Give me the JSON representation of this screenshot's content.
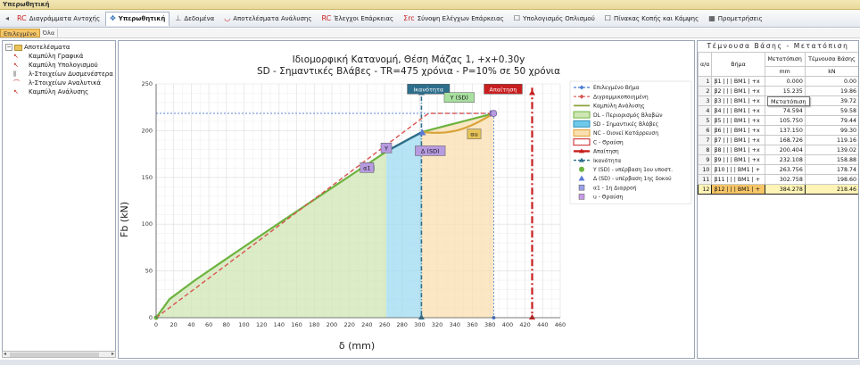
{
  "window_title": "Υπερωθητική",
  "ribbon": {
    "tabs": [
      {
        "label": "Διαγράμματα Αντοχής",
        "icon": "rc-icon",
        "glyph": "RC",
        "color": "#c81e1e"
      },
      {
        "label": "Υπερωθητική",
        "icon": "pushover-icon",
        "glyph": "✥",
        "color": "#2b6cb0",
        "active": true
      },
      {
        "label": "Δεδομένα",
        "icon": "data-icon",
        "glyph": "⊥",
        "color": "#555"
      },
      {
        "label": "Αποτελέσματα Ανάλυσης",
        "icon": "curve-icon",
        "glyph": "◡",
        "color": "#c81e1e"
      },
      {
        "label": "Έλεγχοι Επάρκειας",
        "icon": "rc-check-icon",
        "glyph": "RC",
        "color": "#c81e1e"
      },
      {
        "label": "Σύνοψη Ελέγχων Επάρκειας",
        "icon": "summary-icon",
        "glyph": "Σrc",
        "color": "#c81e1e"
      },
      {
        "label": "Υπολογισμός Οπλισμού",
        "icon": "checkbox-icon",
        "glyph": "☐",
        "color": "#333"
      },
      {
        "label": "Πίνακας Κοπής και Κάμψης",
        "icon": "checkbox-icon",
        "glyph": "☐",
        "color": "#333"
      },
      {
        "label": "Προμετρήσεις",
        "icon": "table-icon",
        "glyph": "▦",
        "color": "#333"
      }
    ]
  },
  "subtabs": [
    "Επιλεγμένο",
    "Όλα"
  ],
  "tree": {
    "root": "Αποτελέσματα",
    "items": [
      {
        "label": "Καμπύλη Γραφικά",
        "glyph": "↖",
        "color": "#c81e1e"
      },
      {
        "label": "Καμπύλη Υπολογισμού",
        "glyph": "↖",
        "color": "#c81e1e"
      },
      {
        "label": "λ-Στοιχείων Δυσμενέστερα",
        "glyph": "⫼",
        "color": "#555"
      },
      {
        "label": "λ-Στοιχείων Αναλυτικά",
        "glyph": "⌒",
        "color": "#c81e1e"
      },
      {
        "label": "Καμπύλη Ανάλυσης",
        "glyph": "↖",
        "color": "#c81e1e"
      }
    ]
  },
  "colors": {
    "accent": "#f6c566",
    "zone_dl": "#cfe6b4",
    "zone_sd": "#9edbf1",
    "zone_nc": "#f9dfb0",
    "capacity": "#2d6e8c",
    "demand": "#c81e1e",
    "analysis_curve": "#6db33f",
    "bilinear": "#d9534f"
  },
  "chart_data": {
    "type": "line",
    "title": "Ιδιομορφική Κατανομή, Θέση Μάζας 1, +x+0.30y",
    "subtitle": "SD - Σημαντικές Βλάβες - TR=475 χρόνια - P=10% σε 50 χρόνια",
    "xlabel": "δ (mm)",
    "ylabel": "Fb (kN)",
    "xlim": [
      0,
      460
    ],
    "ylim": [
      0,
      250
    ],
    "xticks": [
      0,
      20,
      40,
      60,
      80,
      100,
      120,
      140,
      160,
      180,
      200,
      220,
      240,
      260,
      280,
      300,
      320,
      340,
      360,
      380,
      400,
      420,
      440,
      460
    ],
    "yticks": [
      0,
      50,
      100,
      150,
      200,
      250
    ],
    "grid": true,
    "series": [
      {
        "name": "Καμπύλη Ανάλυσης",
        "color": "#6db33f",
        "x": [
          0,
          15.235,
          43.748,
          74.594,
          105.75,
          137.15,
          168.726,
          200.404,
          232.108,
          263.756,
          302.758,
          384.278
        ],
        "y": [
          0,
          19.86,
          39.72,
          59.58,
          79.44,
          99.3,
          119.16,
          139.02,
          158.88,
          178.74,
          198.6,
          218.46
        ]
      },
      {
        "name": "Διγραμμικοποιημένη",
        "color": "#d9534f",
        "dashed": true,
        "x": [
          0,
          310,
          384.278
        ],
        "y": [
          0,
          218.46,
          218.46
        ]
      }
    ],
    "zones": [
      {
        "name": "DL - Περιορισμός Βλαβών",
        "x_start": 0,
        "x_end": 262,
        "color": "#cfe6b4"
      },
      {
        "name": "SD - Σημαντικές Βλάβες",
        "x_start": 262,
        "x_end": 302,
        "color": "#9edbf1"
      },
      {
        "name": "NC - Οιονεί Κατάρρευση",
        "x_start": 302,
        "x_end": 384.278,
        "color": "#f9dfb0"
      }
    ],
    "selected_step": {
      "x": 384.278,
      "y": 218.46
    },
    "capacity_x": 302,
    "demand_x": 428,
    "markers": [
      {
        "label": "α1",
        "x": 245,
        "y": 160,
        "color": "#b79be0"
      },
      {
        "label": "Υ",
        "x": 264,
        "y": 180,
        "color": "#b79be0"
      },
      {
        "label": "Δ (SD)",
        "x": 303,
        "y": 198,
        "color": "#5b7bd6"
      },
      {
        "label": "u",
        "x": 383,
        "y": 218.46,
        "color": "#b79be0"
      }
    ],
    "annotations": [
      {
        "text": "Ικανότητα",
        "x": 310,
        "y": 244,
        "color": "#2d6e8c",
        "fg": "#ffffff"
      },
      {
        "text": "Υ (SD)",
        "x": 345,
        "y": 235,
        "color": "#a8e0a0",
        "fg": "#111"
      },
      {
        "text": "Απαίτηση",
        "x": 395,
        "y": 244,
        "color": "#c81e1e",
        "fg": "#ffffff"
      },
      {
        "text": "α1",
        "x": 240,
        "y": 160,
        "color": "#b79be0",
        "fg": "#111"
      },
      {
        "text": "Υ",
        "x": 262,
        "y": 181,
        "color": "#b79be0",
        "fg": "#111"
      },
      {
        "text": "Δ (SD)",
        "x": 312,
        "y": 178,
        "color": "#b79be0",
        "fg": "#111"
      },
      {
        "text": "αu",
        "x": 362,
        "y": 196,
        "color": "#e6c35a",
        "fg": "#111"
      }
    ],
    "legend_position": "right",
    "legend": [
      {
        "label": "Επιλεγμένο Βήμα",
        "style": "dash-diamond",
        "color": "#4a7bd1"
      },
      {
        "label": "Διγραμμικοποιημένη",
        "style": "dash-diamond",
        "color": "#d9534f"
      },
      {
        "label": "Καμπύλη Ανάλυσης",
        "style": "line",
        "color": "#8aa23c"
      },
      {
        "label": "DL - Περιορισμός Βλαβών",
        "style": "box",
        "color": "#cfe6b4",
        "border": "#6db33f"
      },
      {
        "label": "SD - Σημαντικές Βλάβες",
        "style": "box",
        "color": "#6fc9ea",
        "border": "#2d8fb8"
      },
      {
        "label": "NC - Οιονεί Κατάρρευση",
        "style": "box",
        "color": "#f9dfb0",
        "border": "#e0a030"
      },
      {
        "label": "C - Θραύση",
        "style": "box",
        "color": "#ffffff",
        "border": "#c81e1e"
      },
      {
        "label": "Απαίτηση",
        "style": "thick-arrow",
        "color": "#c81e1e"
      },
      {
        "label": "Ικανότητα",
        "style": "dash-triangle",
        "color": "#2d6e8c"
      },
      {
        "label": "Υ (SD) - υπέρβαση 1ου υποστ.",
        "style": "circle",
        "color": "#6db33f"
      },
      {
        "label": "Δ (SD) - υπέρβαση 1ης δοκού",
        "style": "triangle",
        "color": "#5b7bd6"
      },
      {
        "label": "α1 - 1η Διαρροή",
        "style": "square",
        "color": "#9aa0e6"
      },
      {
        "label": "u - Θραύση",
        "style": "square",
        "color": "#c79be6"
      }
    ]
  },
  "results_table": {
    "title": "Τέμνουσα Βάσης - Μετατόπιση",
    "headers": [
      "α/α",
      "Βήμα",
      "Μετατόπιση",
      "Τέμνουσα Βάσης"
    ],
    "units": [
      "",
      "",
      "mm",
      "kN"
    ],
    "tooltip": "Μετατόπιση",
    "rows": [
      [
        "1",
        "β1 | | | ΒΜ1 | +x",
        "0.000",
        "0.00"
      ],
      [
        "2",
        "β2 | | | ΒΜ1 | +x",
        "15.235",
        "19.86"
      ],
      [
        "3",
        "β3 | | | ΒΜ1 | +x",
        "43.748",
        "39.72"
      ],
      [
        "4",
        "β4 | | | ΒΜ1 | +x",
        "74.594",
        "59.58"
      ],
      [
        "5",
        "β5 | | | ΒΜ1 | +x",
        "105.750",
        "79.44"
      ],
      [
        "6",
        "β6 | | | ΒΜ1 | +x",
        "137.150",
        "99.30"
      ],
      [
        "7",
        "β7 | | | ΒΜ1 | +x",
        "168.726",
        "119.16"
      ],
      [
        "8",
        "β8 | | | ΒΜ1 | +x",
        "200.404",
        "139.02"
      ],
      [
        "9",
        "β9 | | | ΒΜ1 | +x",
        "232.108",
        "158.88"
      ],
      [
        "10",
        "β10 | | | ΒΜ1 | +",
        "263.756",
        "178.74"
      ],
      [
        "11",
        "β11 | | | ΒΜ1 | +",
        "302.758",
        "198.60"
      ],
      [
        "12",
        "β12 | | | ΒΜ1 | +",
        "384.278",
        "218.46"
      ]
    ],
    "selected_row": 11
  }
}
